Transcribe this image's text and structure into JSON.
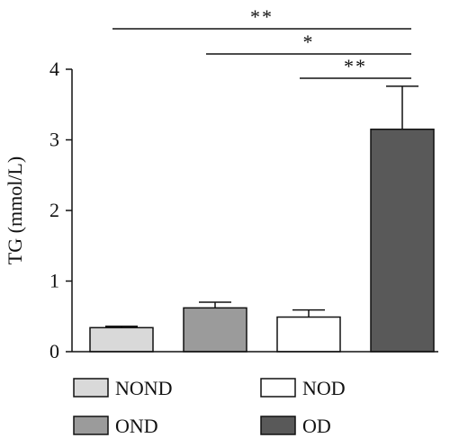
{
  "chart_data": {
    "type": "bar",
    "categories": [
      "NOND",
      "OND",
      "NOD",
      "OD"
    ],
    "values": [
      0.34,
      0.62,
      0.49,
      3.15
    ],
    "errors": [
      0.02,
      0.08,
      0.1,
      0.61
    ],
    "colors": [
      "#d9d9d9",
      "#9b9b9b",
      "#ffffff",
      "#595959"
    ],
    "ylabel": "TG (mmol/L)",
    "ylim": [
      0,
      4
    ],
    "yticks": [
      "0",
      "1",
      "2",
      "3",
      "4"
    ],
    "grid": false,
    "legend": {
      "placement": "bottom",
      "entries": [
        {
          "label": "NOND",
          "color": "#d9d9d9"
        },
        {
          "label": "NOD",
          "color": "#ffffff"
        },
        {
          "label": "OND",
          "color": "#9b9b9b"
        },
        {
          "label": "OD",
          "color": "#595959"
        }
      ]
    },
    "significance": [
      {
        "from": "NOND",
        "to": "OD",
        "label": "**"
      },
      {
        "from": "OND",
        "to": "OD",
        "label": "*"
      },
      {
        "from": "NOD",
        "to": "OD",
        "label": "**"
      }
    ]
  }
}
